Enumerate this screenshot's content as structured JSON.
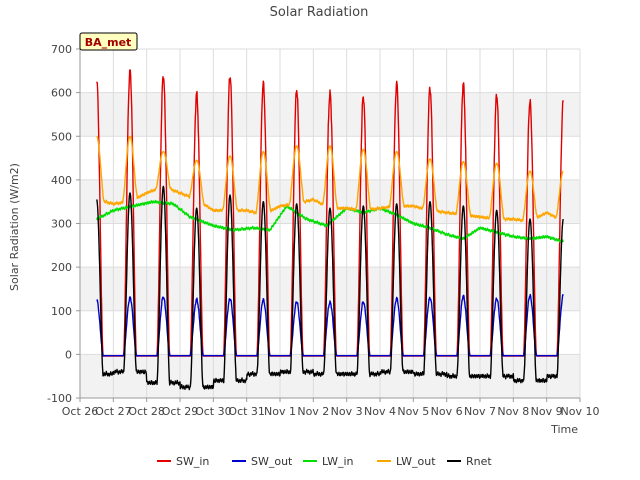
{
  "chart_data": {
    "type": "line",
    "title": "Solar Radiation",
    "xlabel": "Time",
    "ylabel": "Solar Radiation (W/m2)",
    "annotation": "BA_met",
    "xlim": [
      0,
      15
    ],
    "ylim": [
      -100,
      700
    ],
    "yticks": [
      -100,
      0,
      100,
      200,
      300,
      400,
      500,
      600,
      700
    ],
    "xticks": [
      {
        "v": 0,
        "label": "Oct 26"
      },
      {
        "v": 1,
        "label": "Oct 27"
      },
      {
        "v": 2,
        "label": "Oct 28"
      },
      {
        "v": 3,
        "label": "Oct 29"
      },
      {
        "v": 4,
        "label": "Oct 30"
      },
      {
        "v": 5,
        "label": "Oct 31"
      },
      {
        "v": 6,
        "label": "Nov 1"
      },
      {
        "v": 7,
        "label": "Nov 2"
      },
      {
        "v": 8,
        "label": "Nov 3"
      },
      {
        "v": 9,
        "label": "Nov 4"
      },
      {
        "v": 10,
        "label": "Nov 5"
      },
      {
        "v": 11,
        "label": "Nov 6"
      },
      {
        "v": 12,
        "label": "Nov 7"
      },
      {
        "v": 13,
        "label": "Nov 8"
      },
      {
        "v": 14,
        "label": "Nov 9"
      },
      {
        "v": 15,
        "label": "Nov 10"
      }
    ],
    "grid": true,
    "legend_position": "bottom",
    "x_start": 0.5,
    "x_end": 14.5,
    "noon_offset": 0.5,
    "series": [
      {
        "name": "SW_in",
        "color": "#e00000",
        "kind": "sw_in",
        "peaks": [
          630,
          650,
          640,
          595,
          640,
          620,
          605,
          600,
          590,
          620,
          612,
          618,
          595,
          580
        ]
      },
      {
        "name": "SW_out",
        "color": "#0000cc",
        "kind": "sw_out",
        "peaks": [
          125,
          130,
          132,
          125,
          128,
          125,
          120,
          120,
          120,
          128,
          130,
          133,
          128,
          135
        ]
      },
      {
        "name": "LW_in",
        "color": "#00dd00",
        "kind": "lw",
        "anchors": [
          [
            0.5,
            310
          ],
          [
            1.0,
            330
          ],
          [
            1.6,
            340
          ],
          [
            2.2,
            350
          ],
          [
            2.8,
            345
          ],
          [
            3.3,
            315
          ],
          [
            4.0,
            295
          ],
          [
            4.6,
            285
          ],
          [
            5.2,
            290
          ],
          [
            5.7,
            285
          ],
          [
            6.2,
            340
          ],
          [
            6.8,
            310
          ],
          [
            7.4,
            295
          ],
          [
            8.0,
            335
          ],
          [
            8.5,
            325
          ],
          [
            9.0,
            335
          ],
          [
            9.5,
            320
          ],
          [
            10.0,
            300
          ],
          [
            10.5,
            290
          ],
          [
            11.0,
            275
          ],
          [
            11.5,
            265
          ],
          [
            12.0,
            290
          ],
          [
            12.5,
            280
          ],
          [
            13.0,
            270
          ],
          [
            13.5,
            265
          ],
          [
            14.0,
            270
          ],
          [
            14.5,
            258
          ]
        ]
      },
      {
        "name": "LW_out",
        "color": "#ffa500",
        "kind": "lw",
        "anchors": [
          [
            0.5,
            355
          ],
          [
            1.0,
            345
          ],
          [
            1.5,
            350
          ],
          [
            2.0,
            370
          ],
          [
            2.5,
            385
          ],
          [
            3.0,
            370
          ],
          [
            3.5,
            355
          ],
          [
            4.0,
            330
          ],
          [
            4.5,
            330
          ],
          [
            5.0,
            330
          ],
          [
            5.5,
            320
          ],
          [
            6.0,
            340
          ],
          [
            6.5,
            345
          ],
          [
            7.0,
            355
          ],
          [
            7.5,
            335
          ],
          [
            8.0,
            335
          ],
          [
            8.5,
            330
          ],
          [
            9.0,
            335
          ],
          [
            9.5,
            340
          ],
          [
            10.0,
            340
          ],
          [
            10.5,
            330
          ],
          [
            11.0,
            325
          ],
          [
            11.5,
            320
          ],
          [
            12.0,
            315
          ],
          [
            12.5,
            310
          ],
          [
            13.0,
            310
          ],
          [
            13.5,
            305
          ],
          [
            14.0,
            325
          ],
          [
            14.5,
            305
          ]
        ],
        "peaks": [
          500,
          500,
          465,
          445,
          455,
          465,
          478,
          478,
          470,
          465,
          448,
          442,
          438,
          420
        ]
      },
      {
        "name": "Rnet",
        "color": "#000000",
        "kind": "rnet",
        "peaks": [
          355,
          370,
          385,
          335,
          365,
          350,
          345,
          335,
          340,
          345,
          350,
          340,
          330,
          310
        ],
        "nights": [
          -45,
          -40,
          -65,
          -75,
          -60,
          -45,
          -40,
          -45,
          -45,
          -40,
          -45,
          -50,
          -50,
          -60,
          -50
        ]
      }
    ]
  }
}
